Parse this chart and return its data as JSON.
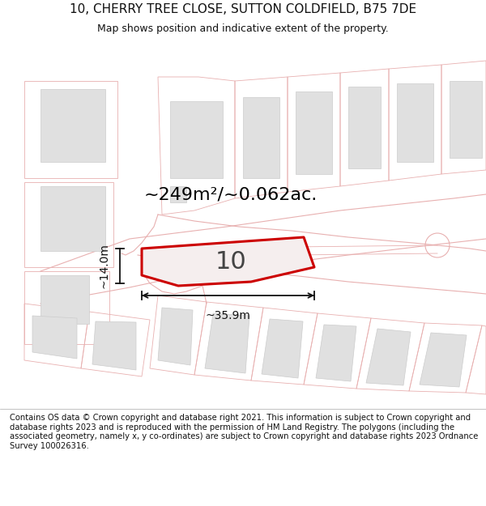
{
  "title_line1": "10, CHERRY TREE CLOSE, SUTTON COLDFIELD, B75 7DE",
  "title_line2": "Map shows position and indicative extent of the property.",
  "footer_text": "Contains OS data © Crown copyright and database right 2021. This information is subject to Crown copyright and database rights 2023 and is reproduced with the permission of HM Land Registry. The polygons (including the associated geometry, namely x, y co-ordinates) are subject to Crown copyright and database rights 2023 Ordnance Survey 100026316.",
  "area_text": "~249m²/~0.062ac.",
  "plot_number": "10",
  "dim_width": "~35.9m",
  "dim_height": "~14.0m",
  "bg_color": "#ffffff",
  "map_bg": "#ffffff",
  "plot_fill": "#f5eeee",
  "plot_edge": "#cc0000",
  "outline_color": "#e8b0b0",
  "building_fill": "#e0e0e0",
  "building_edge": "#cccccc",
  "text_color": "#000000",
  "dim_color": "#111111",
  "title_fontsize": 11,
  "subtitle_fontsize": 9,
  "footer_fontsize": 7.2,
  "area_fontsize": 16,
  "plot_num_fontsize": 22,
  "dim_fontsize": 10
}
